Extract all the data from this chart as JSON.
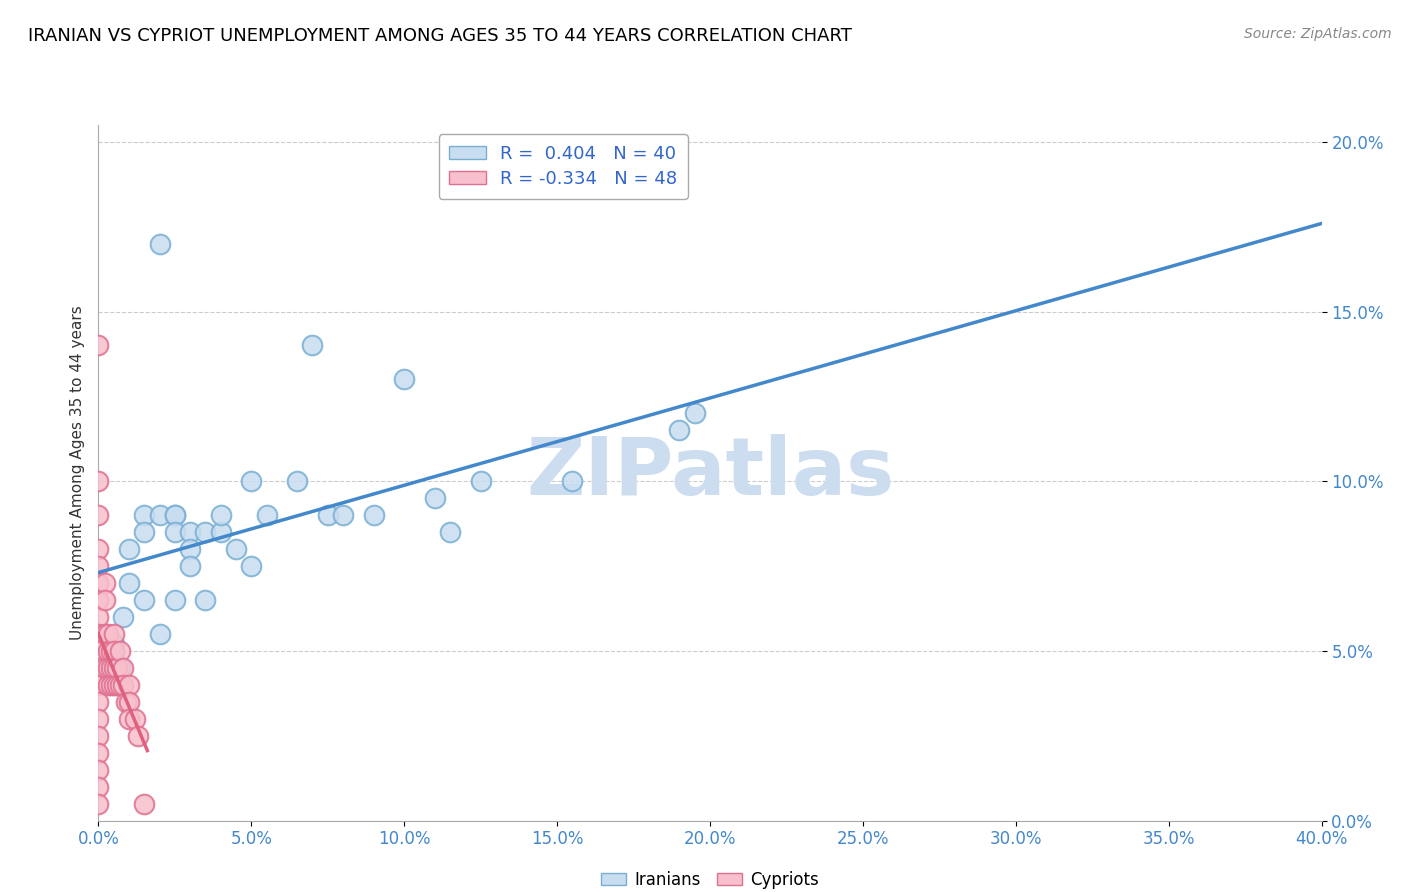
{
  "title": "IRANIAN VS CYPRIOT UNEMPLOYMENT AMONG AGES 35 TO 44 YEARS CORRELATION CHART",
  "source": "Source: ZipAtlas.com",
  "xmin": 0.0,
  "xmax": 0.4,
  "ymin": 0.0,
  "ymax": 0.205,
  "iranian_R": 0.404,
  "iranian_N": 40,
  "cypriot_R": -0.334,
  "cypriot_N": 48,
  "iranian_fill": "#c8ddf0",
  "iranian_edge": "#7aafd4",
  "cypriot_fill": "#f8c0cc",
  "cypriot_edge": "#e07090",
  "iranian_line_color": "#4488cc",
  "cypriot_line_color": "#e06080",
  "watermark": "ZIPatlas",
  "watermark_color": "#ccddf0",
  "iranians_x": [
    0.005,
    0.005,
    0.005,
    0.007,
    0.008,
    0.01,
    0.01,
    0.015,
    0.015,
    0.015,
    0.02,
    0.02,
    0.02,
    0.025,
    0.025,
    0.025,
    0.025,
    0.03,
    0.03,
    0.03,
    0.035,
    0.035,
    0.04,
    0.04,
    0.045,
    0.05,
    0.05,
    0.055,
    0.065,
    0.07,
    0.075,
    0.08,
    0.09,
    0.1,
    0.11,
    0.115,
    0.125,
    0.155,
    0.19,
    0.195
  ],
  "iranians_y": [
    0.05,
    0.052,
    0.048,
    0.045,
    0.06,
    0.07,
    0.08,
    0.09,
    0.065,
    0.085,
    0.09,
    0.17,
    0.055,
    0.065,
    0.09,
    0.09,
    0.085,
    0.085,
    0.08,
    0.075,
    0.085,
    0.065,
    0.085,
    0.09,
    0.08,
    0.1,
    0.075,
    0.09,
    0.1,
    0.14,
    0.09,
    0.09,
    0.09,
    0.13,
    0.095,
    0.085,
    0.1,
    0.1,
    0.115,
    0.12
  ],
  "cypriots_x": [
    0.0,
    0.0,
    0.0,
    0.0,
    0.0,
    0.0,
    0.0,
    0.0,
    0.0,
    0.0,
    0.0,
    0.0,
    0.0,
    0.0,
    0.0,
    0.0,
    0.0,
    0.0,
    0.0,
    0.0,
    0.002,
    0.002,
    0.002,
    0.002,
    0.003,
    0.003,
    0.003,
    0.003,
    0.004,
    0.004,
    0.004,
    0.005,
    0.005,
    0.005,
    0.005,
    0.006,
    0.006,
    0.007,
    0.007,
    0.008,
    0.008,
    0.009,
    0.01,
    0.01,
    0.01,
    0.012,
    0.013,
    0.015
  ],
  "cypriots_y": [
    0.14,
    0.1,
    0.09,
    0.08,
    0.075,
    0.07,
    0.065,
    0.06,
    0.055,
    0.05,
    0.05,
    0.045,
    0.04,
    0.035,
    0.03,
    0.025,
    0.02,
    0.015,
    0.01,
    0.005,
    0.07,
    0.065,
    0.055,
    0.045,
    0.055,
    0.05,
    0.045,
    0.04,
    0.05,
    0.045,
    0.04,
    0.055,
    0.05,
    0.045,
    0.04,
    0.045,
    0.04,
    0.05,
    0.04,
    0.045,
    0.04,
    0.035,
    0.04,
    0.035,
    0.03,
    0.03,
    0.025,
    0.005
  ]
}
